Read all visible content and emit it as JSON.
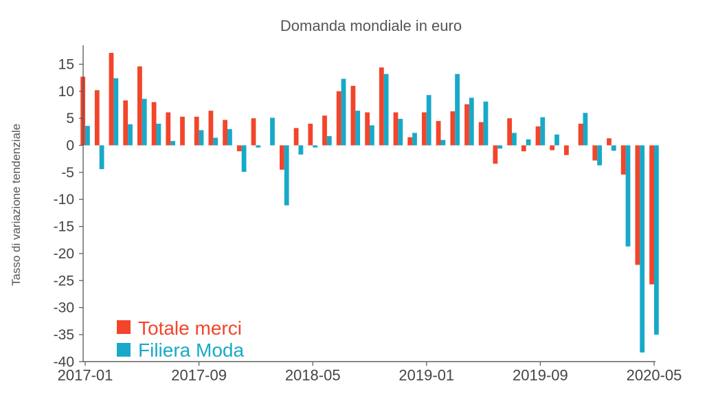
{
  "chart_data": {
    "type": "bar",
    "title": "Domanda mondiale in euro",
    "xlabel": "",
    "ylabel": "Tasso di variazione tendenziale",
    "ylim": [
      -40,
      18
    ],
    "yticks": [
      15,
      10,
      5,
      0,
      -5,
      -10,
      -15,
      -20,
      -25,
      -30,
      -35,
      -40
    ],
    "xtick_labels": [
      "2017-01",
      "2017-09",
      "2018-05",
      "2019-01",
      "2019-09",
      "2020-05"
    ],
    "legend_position": "bottom-left",
    "categories": [
      "2017-01",
      "2017-02",
      "2017-03",
      "2017-04",
      "2017-05",
      "2017-06",
      "2017-07",
      "2017-08",
      "2017-09",
      "2017-10",
      "2017-11",
      "2017-12",
      "2018-01",
      "2018-02",
      "2018-03",
      "2018-04",
      "2018-05",
      "2018-06",
      "2018-07",
      "2018-08",
      "2018-09",
      "2018-10",
      "2018-11",
      "2018-12",
      "2019-01",
      "2019-02",
      "2019-03",
      "2019-04",
      "2019-05",
      "2019-06",
      "2019-07",
      "2019-08",
      "2019-09",
      "2019-10",
      "2019-11",
      "2019-12",
      "2020-01",
      "2020-02",
      "2020-03",
      "2020-04",
      "2020-05"
    ],
    "series": [
      {
        "name": "Totale merci",
        "color": "#f2452b",
        "values": [
          12.7,
          10.2,
          17.1,
          8.3,
          14.6,
          8.0,
          6.1,
          5.3,
          5.3,
          6.4,
          4.7,
          -1.1,
          5.0,
          0.0,
          -4.5,
          3.2,
          4.0,
          5.5,
          10.0,
          11.0,
          6.1,
          14.4,
          6.1,
          1.5,
          6.1,
          4.5,
          6.3,
          7.6,
          4.3,
          -3.4,
          5.0,
          -1.1,
          3.5,
          -0.9,
          -1.8,
          4.0,
          -2.8,
          1.3,
          -5.4,
          -22.1,
          -25.7
        ]
      },
      {
        "name": "Filiera Moda",
        "color": "#18a9c8",
        "values": [
          3.6,
          -4.4,
          12.4,
          3.9,
          8.6,
          4.0,
          0.8,
          0.0,
          2.8,
          1.4,
          3.0,
          -4.9,
          -0.4,
          5.1,
          -11.1,
          -1.7,
          -0.4,
          1.7,
          12.3,
          6.4,
          3.7,
          13.2,
          4.9,
          2.3,
          9.3,
          1.0,
          13.2,
          8.8,
          8.1,
          -0.6,
          2.3,
          1.1,
          5.2,
          2.0,
          0.0,
          6.0,
          -3.7,
          -1.0,
          -18.7,
          -38.3,
          -35.0
        ]
      }
    ]
  }
}
